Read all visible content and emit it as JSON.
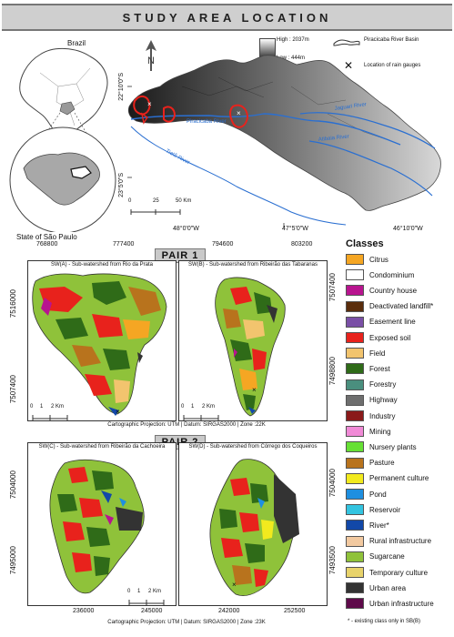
{
  "title": "STUDY AREA LOCATION",
  "locator": {
    "brazil_label": "Brazil",
    "state_label": "State of São Paulo"
  },
  "map_legend": {
    "high": "High : 2037m",
    "low": "Low : 444m",
    "basin": "Piracicaba River Basin",
    "gauges": "Location of rain gauges"
  },
  "main_map": {
    "lat_top": "22°10'0\"S",
    "lat_bottom": "23°5'0\"S",
    "lon_left": "48°0'0\"W",
    "lon_mid": "47°5'0\"W",
    "lon_right": "46°10'0\"W",
    "scale_ticks": [
      "0",
      "25",
      "50 Km"
    ],
    "rivers": [
      "Piracicaba River",
      "Tietê River",
      "Jaguari River",
      "Atibaia River"
    ]
  },
  "pair1": {
    "label": "PAIR 1",
    "sw_a_title": "SW(A) - Sub-watershed from Rio da Prata",
    "sw_b_title": "SW(B) - Sub-watershed from Ribeirão das Tabaranas",
    "x_a": [
      "768800",
      "777400"
    ],
    "x_b": [
      "794600",
      "803200"
    ],
    "y_a": [
      "7516000",
      "7507400"
    ],
    "y_b": [
      "7507400",
      "7498800"
    ],
    "scale_ticks": [
      "0",
      "1",
      "2 Km"
    ],
    "projection": "Cartographic Projection: UTM | Datum: SIRGAS2000 | Zone :22K"
  },
  "pair2": {
    "label": "PAIR 2",
    "sw_c_title": "SW(C) - Sub-watershed from Ribeirão da Cachoeira",
    "sw_d_title": "SW(D) - Sub-watershed from Córrego dos Coqueiros",
    "x_c": [
      "236000",
      "245000"
    ],
    "x_d": [
      "242000",
      "252500"
    ],
    "y_c": [
      "7504000",
      "7495000"
    ],
    "y_d": [
      "7504000",
      "7493500"
    ],
    "scale_ticks": [
      "0",
      "1",
      "2 Km"
    ],
    "projection": "Cartographic Projection: UTM | Datum: SIRGAS2000 | Zone :23K"
  },
  "classes": {
    "title": "Classes",
    "footnote": "* - existing class only in SB(B)",
    "items": [
      {
        "label": "Citrus",
        "color": "#f5a623"
      },
      {
        "label": "Condominium",
        "color": "#ffffff"
      },
      {
        "label": "Country house",
        "color": "#b8148f"
      },
      {
        "label": "Deactivated landfill*",
        "color": "#5a2d0c"
      },
      {
        "label": "Easement line",
        "color": "#7a4fa6"
      },
      {
        "label": "Exposed soil",
        "color": "#e8221c"
      },
      {
        "label": "Field",
        "color": "#f2c46e"
      },
      {
        "label": "Forest",
        "color": "#2f6b18"
      },
      {
        "label": "Forestry",
        "color": "#4a8f7e"
      },
      {
        "label": "Highway",
        "color": "#6e6e6e"
      },
      {
        "label": "Industry",
        "color": "#8a1a1a"
      },
      {
        "label": "Mining",
        "color": "#f08ad6"
      },
      {
        "label": "Nursery plants",
        "color": "#66e035"
      },
      {
        "label": "Pasture",
        "color": "#b8731d"
      },
      {
        "label": "Permanent culture",
        "color": "#f2ea1e"
      },
      {
        "label": "Pond",
        "color": "#1e8fe0"
      },
      {
        "label": "Reservoir",
        "color": "#33c4e0"
      },
      {
        "label": "River*",
        "color": "#1248a8"
      },
      {
        "label": "Rural infrastructure",
        "color": "#f2c9a0"
      },
      {
        "label": "Sugarcane",
        "color": "#8fc23a"
      },
      {
        "label": "Temporary culture",
        "color": "#e8d36b"
      },
      {
        "label": "Urban area",
        "color": "#333333"
      },
      {
        "label": "Urban infrastructure",
        "color": "#5e0a4a"
      }
    ]
  }
}
